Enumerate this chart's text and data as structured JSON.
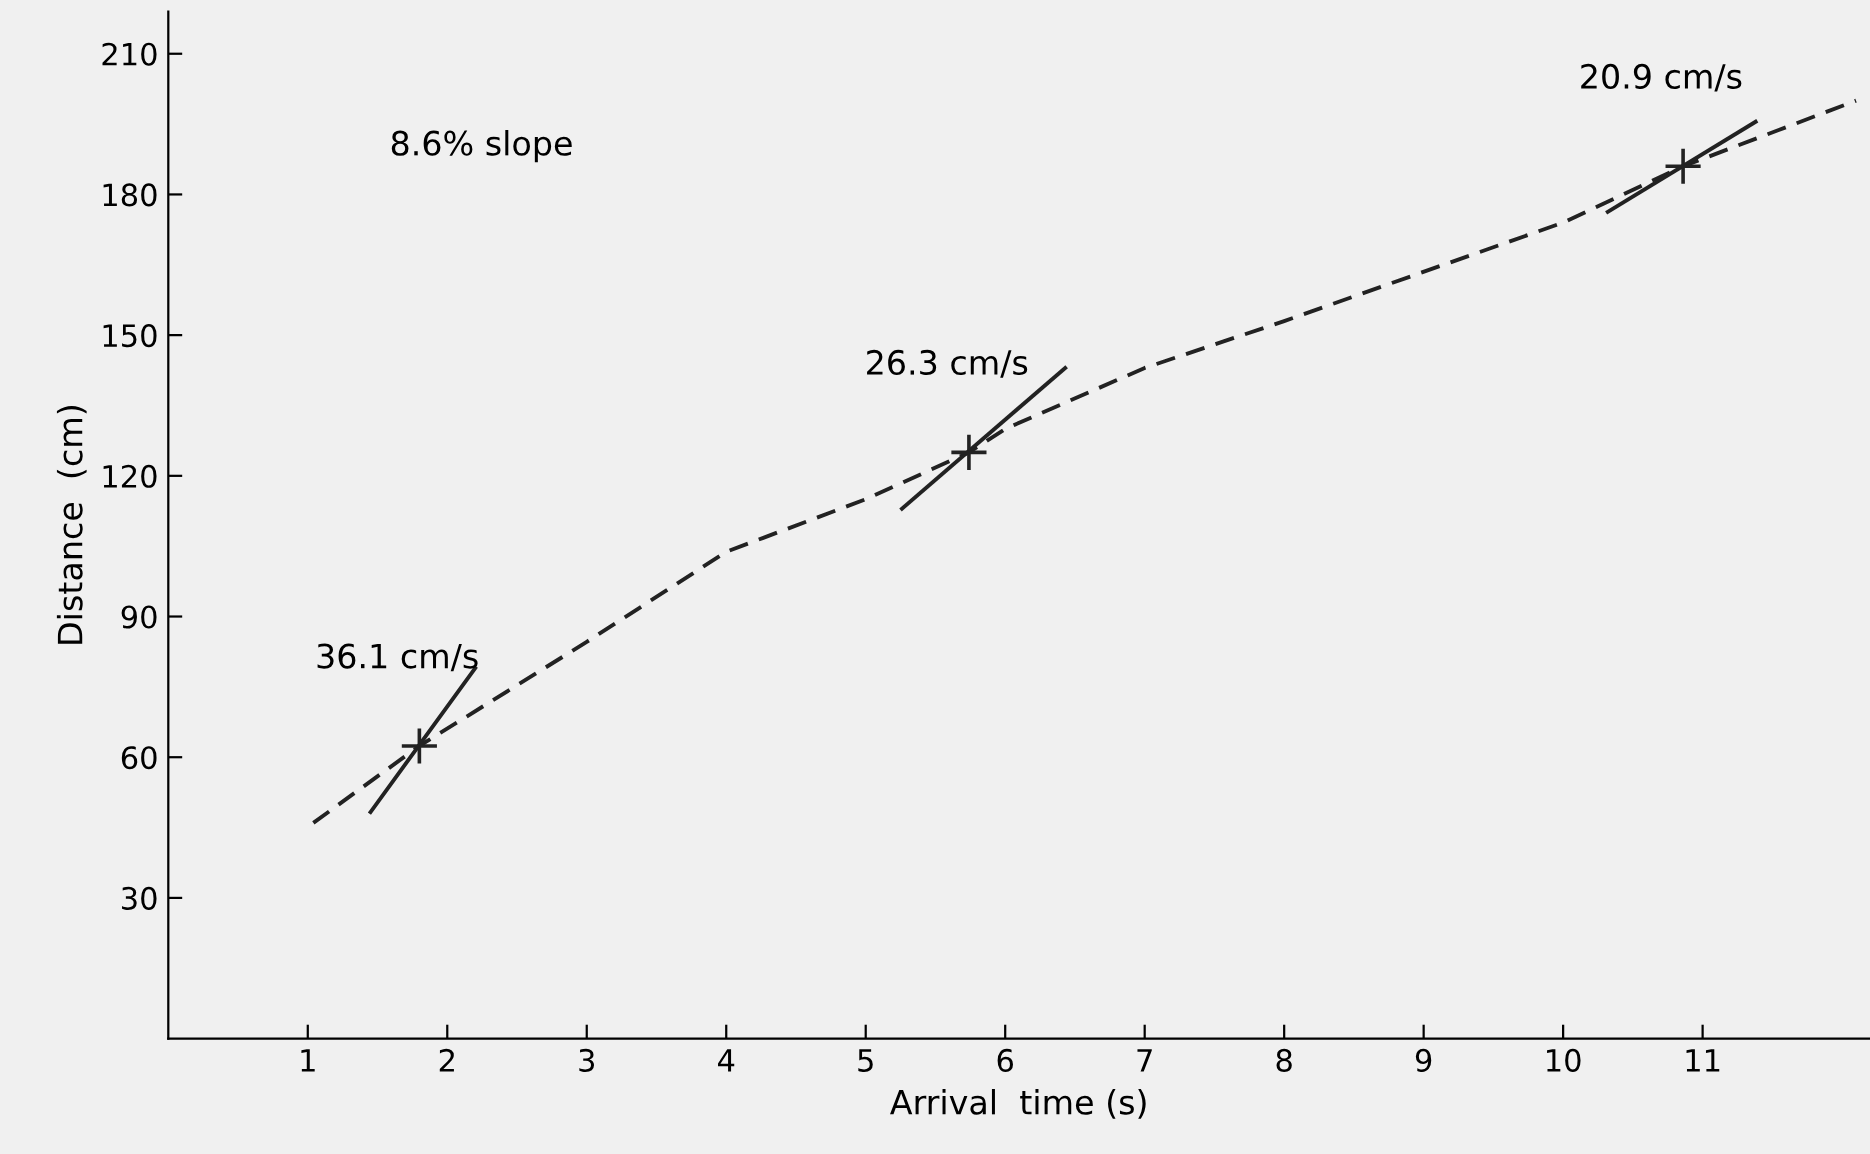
{
  "chart_data": {
    "type": "line",
    "xlabel": "Arrival  time (s)",
    "ylabel": "Distance  (cm)",
    "xlim": [
      0,
      12.2
    ],
    "ylim": [
      0,
      219
    ],
    "xticks": [
      1,
      2,
      3,
      4,
      5,
      6,
      7,
      8,
      9,
      10,
      11
    ],
    "yticks": [
      30,
      60,
      90,
      120,
      150,
      180,
      210
    ],
    "grid": false,
    "legend": false,
    "series": [
      {
        "line_style": "dashed",
        "marker": "none",
        "color": "#222222",
        "x": [
          1.04,
          1.8,
          3,
          4,
          5,
          5.74,
          6,
          7,
          8,
          10,
          10.86,
          12.1
        ],
        "values": [
          46,
          62.4,
          84.6,
          103.8,
          115,
          125,
          130,
          143,
          153,
          174,
          186,
          200
        ]
      },
      {
        "line_style": "solid",
        "marker": "none",
        "color": "#222222",
        "x": [
          1.45,
          2.2
        ],
        "values": [
          48.3,
          79
        ]
      },
      {
        "line_style": "solid",
        "marker": "none",
        "color": "#222222",
        "x": [
          5.26,
          6.43
        ],
        "values": [
          113,
          143
        ]
      },
      {
        "line_style": "solid",
        "marker": "none",
        "color": "#222222",
        "x": [
          10.32,
          11.38
        ],
        "values": [
          176.3,
          195.5
        ]
      },
      {
        "type": "scatter",
        "marker": "cross",
        "color": "#222222",
        "x": [
          1.8,
          5.74,
          10.86
        ],
        "values": [
          62.4,
          125,
          186
        ]
      }
    ],
    "annotations": [
      "8.6% slope",
      {
        "text": "36.1 cm/s",
        "x": 1.8,
        "y": 62.4
      },
      {
        "text": "26.3 cm/s",
        "x": 5.74,
        "y": 125
      },
      {
        "text": "20.9 cm/s",
        "x": 10.86,
        "y": 186
      }
    ]
  }
}
